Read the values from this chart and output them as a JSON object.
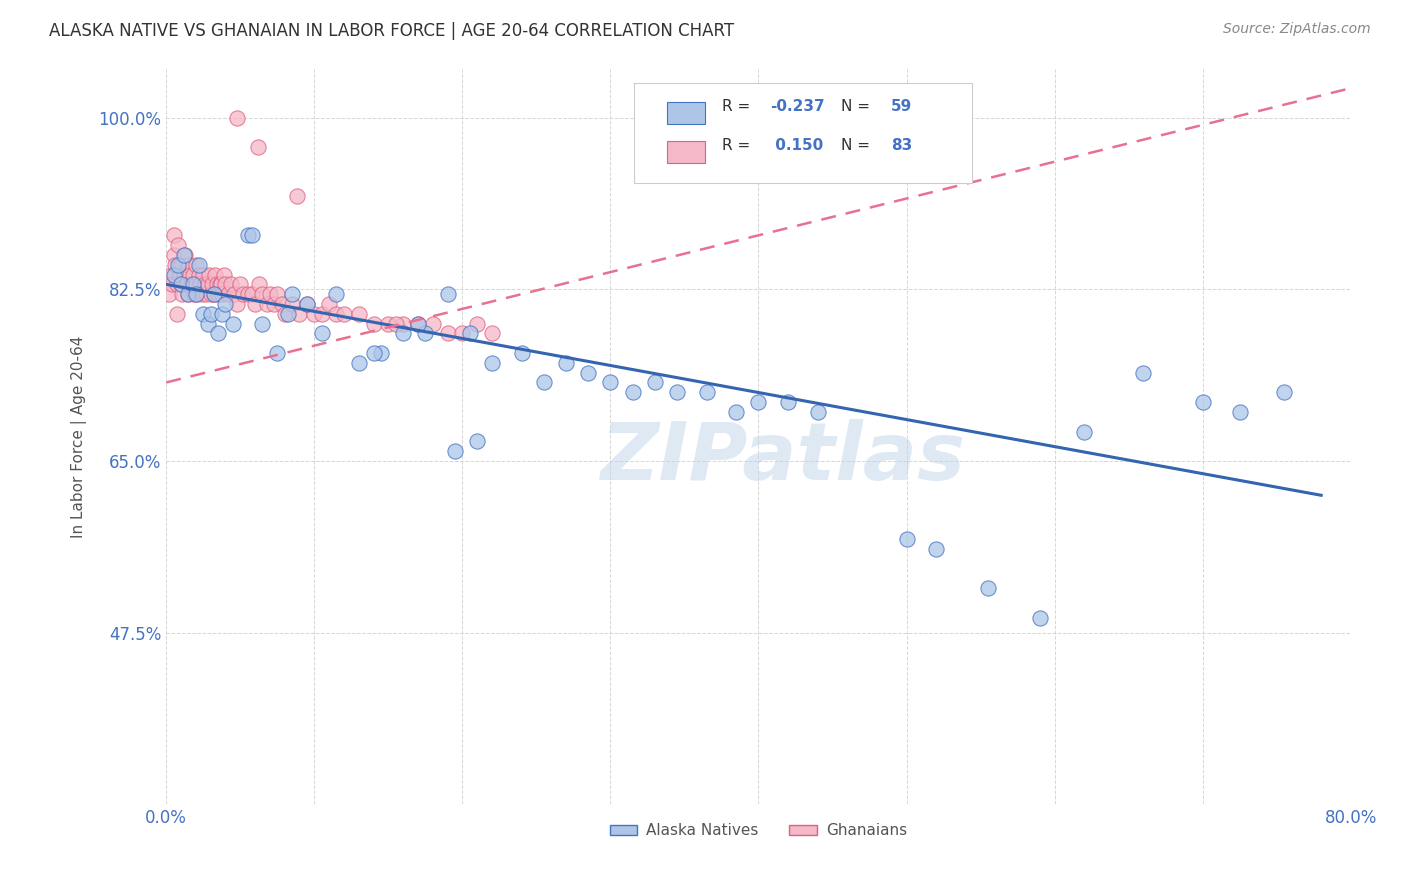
{
  "title": "ALASKA NATIVE VS GHANAIAN IN LABOR FORCE | AGE 20-64 CORRELATION CHART",
  "source": "Source: ZipAtlas.com",
  "ylabel": "In Labor Force | Age 20-64",
  "xlim": [
    0.0,
    0.8
  ],
  "ylim": [
    0.3,
    1.05
  ],
  "xticks": [
    0.0,
    0.1,
    0.2,
    0.3,
    0.4,
    0.5,
    0.6,
    0.7,
    0.8
  ],
  "xticklabels": [
    "0.0%",
    "",
    "",
    "",
    "",
    "",
    "",
    "",
    "80.0%"
  ],
  "yticks": [
    0.475,
    0.65,
    0.825,
    1.0
  ],
  "yticklabels": [
    "47.5%",
    "65.0%",
    "82.5%",
    "100.0%"
  ],
  "watermark": "ZIPatlas",
  "alaska_R": "-0.237",
  "alaska_N": "59",
  "ghana_R": "0.150",
  "ghana_N": "83",
  "alaska_color": "#adc6e8",
  "alaska_edge_color": "#4472c4",
  "ghana_color": "#f4b8c8",
  "ghana_edge_color": "#e06080",
  "alaska_line_color": "#3465b0",
  "ghana_line_color": "#e87090",
  "tick_color": "#4472c4",
  "title_color": "#333333",
  "source_color": "#888888",
  "ylabel_color": "#555555",
  "legend_label_color": "#333333",
  "legend_n_color": "#4472c4",
  "grid_color": "#cccccc",
  "watermark_color": "#c0d4eb"
}
